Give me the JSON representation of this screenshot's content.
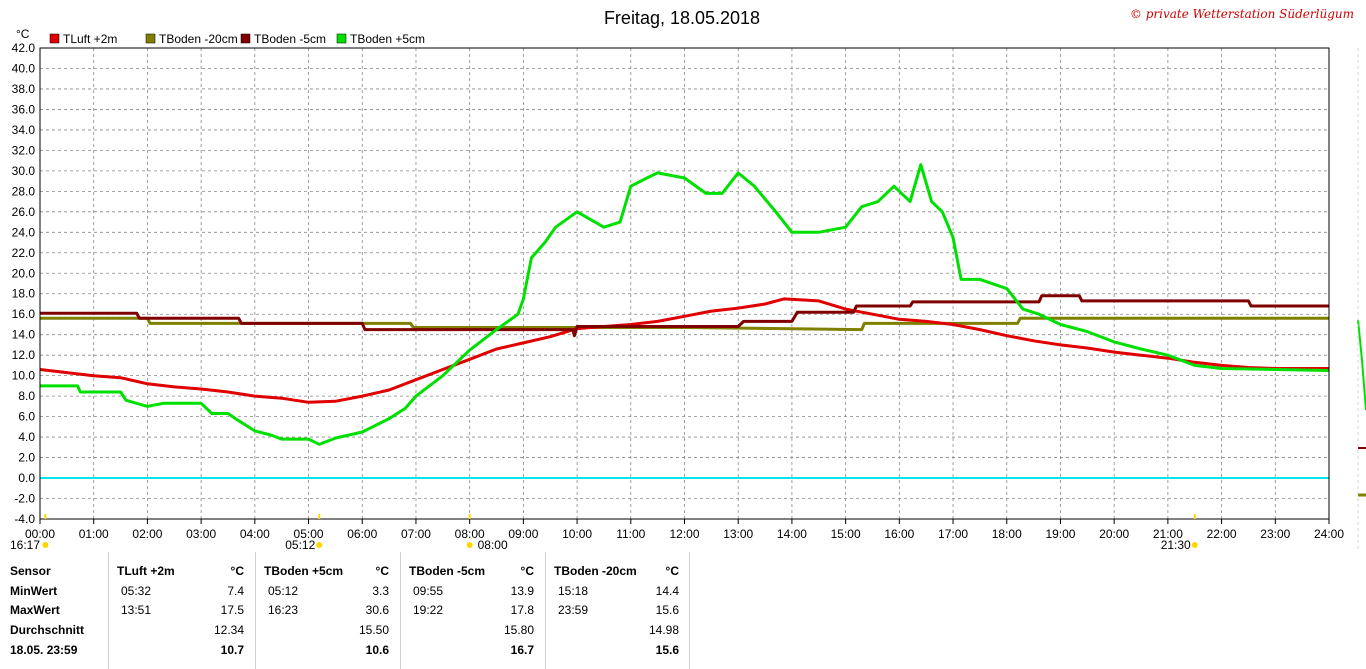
{
  "chart_data": {
    "type": "line",
    "title": "Freitag, 18.05.2018",
    "copyright": "© private Wetterstation Süderlügum",
    "ylabel": "°C",
    "ylim": [
      -4,
      42
    ],
    "ytick_step": 2,
    "xlim": [
      0,
      24
    ],
    "x_ticks": [
      "00:00",
      "01:00",
      "02:00",
      "03:00",
      "04:00",
      "05:00",
      "06:00",
      "07:00",
      "08:00",
      "09:00",
      "10:00",
      "11:00",
      "12:00",
      "13:00",
      "14:00",
      "15:00",
      "16:00",
      "17:00",
      "18:00",
      "19:00",
      "20:00",
      "21:00",
      "22:00",
      "23:00",
      "24:00"
    ],
    "sun_marks": [
      {
        "label": "16:17",
        "x": 0.1
      },
      {
        "label": "05:12",
        "x": 5.2
      },
      {
        "label": "08:00",
        "x": 8.0
      },
      {
        "label": "21:30",
        "x": 21.5
      }
    ],
    "grid": true,
    "legend_position": "top-left",
    "reference_line": {
      "y": 0,
      "color": "#00e5ee"
    },
    "series": [
      {
        "name": "TLuft +2m",
        "color": "#e00000",
        "points": [
          [
            0,
            10.6
          ],
          [
            1,
            10.0
          ],
          [
            1.5,
            9.8
          ],
          [
            2,
            9.2
          ],
          [
            2.5,
            8.9
          ],
          [
            3,
            8.7
          ],
          [
            3.5,
            8.4
          ],
          [
            4,
            8.0
          ],
          [
            4.5,
            7.8
          ],
          [
            5,
            7.4
          ],
          [
            5.5,
            7.5
          ],
          [
            6,
            8.0
          ],
          [
            6.5,
            8.6
          ],
          [
            7,
            9.6
          ],
          [
            7.5,
            10.6
          ],
          [
            8,
            11.6
          ],
          [
            8.5,
            12.6
          ],
          [
            9,
            13.2
          ],
          [
            9.5,
            13.8
          ],
          [
            10,
            14.6
          ],
          [
            10.5,
            14.8
          ],
          [
            11,
            15.0
          ],
          [
            11.5,
            15.3
          ],
          [
            12,
            15.8
          ],
          [
            12.5,
            16.3
          ],
          [
            13,
            16.6
          ],
          [
            13.5,
            17.0
          ],
          [
            13.85,
            17.5
          ],
          [
            14.5,
            17.3
          ],
          [
            15,
            16.5
          ],
          [
            15.5,
            16.0
          ],
          [
            16,
            15.5
          ],
          [
            16.5,
            15.3
          ],
          [
            17,
            15.0
          ],
          [
            17.5,
            14.5
          ],
          [
            18,
            13.9
          ],
          [
            18.5,
            13.4
          ],
          [
            19,
            13.0
          ],
          [
            19.5,
            12.7
          ],
          [
            20,
            12.3
          ],
          [
            20.5,
            12.0
          ],
          [
            21,
            11.7
          ],
          [
            21.5,
            11.3
          ],
          [
            22,
            11.0
          ],
          [
            22.5,
            10.8
          ],
          [
            23,
            10.7
          ],
          [
            23.99,
            10.7
          ]
        ]
      },
      {
        "name": "TBoden -20cm",
        "color": "#808000",
        "points": [
          [
            0,
            15.6
          ],
          [
            2,
            15.6
          ],
          [
            2.05,
            15.1
          ],
          [
            6.9,
            15.1
          ],
          [
            6.95,
            14.7
          ],
          [
            12,
            14.7
          ],
          [
            15.3,
            14.5
          ],
          [
            15.35,
            15.1
          ],
          [
            18.2,
            15.1
          ],
          [
            18.25,
            15.6
          ],
          [
            23.99,
            15.6
          ]
        ]
      },
      {
        "name": "TBoden -5cm",
        "color": "#800000",
        "points": [
          [
            0,
            16.1
          ],
          [
            1.8,
            16.1
          ],
          [
            1.85,
            15.6
          ],
          [
            3.7,
            15.6
          ],
          [
            3.75,
            15.1
          ],
          [
            6,
            15.1
          ],
          [
            6.05,
            14.5
          ],
          [
            9.92,
            14.5
          ],
          [
            9.95,
            13.9
          ],
          [
            10,
            14.8
          ],
          [
            11.5,
            14.8
          ],
          [
            11.55,
            14.8
          ],
          [
            13,
            14.8
          ],
          [
            13.1,
            15.3
          ],
          [
            14,
            15.3
          ],
          [
            14.1,
            16.2
          ],
          [
            15.15,
            16.2
          ],
          [
            15.2,
            16.8
          ],
          [
            16.2,
            16.8
          ],
          [
            16.25,
            17.2
          ],
          [
            18.6,
            17.2
          ],
          [
            18.65,
            17.8
          ],
          [
            19.35,
            17.8
          ],
          [
            19.4,
            17.3
          ],
          [
            22.5,
            17.3
          ],
          [
            22.55,
            16.8
          ],
          [
            23.99,
            16.8
          ]
        ]
      },
      {
        "name": "TBoden +5cm",
        "color": "#00e000",
        "points": [
          [
            0,
            9.0
          ],
          [
            0.7,
            9.0
          ],
          [
            0.75,
            8.4
          ],
          [
            1.5,
            8.4
          ],
          [
            1.6,
            7.6
          ],
          [
            2.0,
            7.0
          ],
          [
            2.3,
            7.3
          ],
          [
            3,
            7.3
          ],
          [
            3.2,
            6.3
          ],
          [
            3.5,
            6.3
          ],
          [
            3.7,
            5.6
          ],
          [
            4,
            4.6
          ],
          [
            4.3,
            4.2
          ],
          [
            4.5,
            3.8
          ],
          [
            5,
            3.8
          ],
          [
            5.2,
            3.3
          ],
          [
            5.5,
            3.9
          ],
          [
            6,
            4.5
          ],
          [
            6.5,
            5.8
          ],
          [
            6.8,
            6.8
          ],
          [
            7,
            8.0
          ],
          [
            7.5,
            10.0
          ],
          [
            8,
            12.5
          ],
          [
            8.5,
            14.5
          ],
          [
            8.9,
            16.0
          ],
          [
            9.0,
            17.5
          ],
          [
            9.15,
            21.5
          ],
          [
            9.4,
            23.0
          ],
          [
            9.6,
            24.5
          ],
          [
            10,
            26.0
          ],
          [
            10.5,
            24.5
          ],
          [
            10.8,
            25.0
          ],
          [
            11,
            28.5
          ],
          [
            11.3,
            29.3
          ],
          [
            11.5,
            29.8
          ],
          [
            12,
            29.3
          ],
          [
            12.4,
            27.8
          ],
          [
            12.7,
            27.8
          ],
          [
            13,
            29.8
          ],
          [
            13.3,
            28.5
          ],
          [
            13.7,
            26.0
          ],
          [
            14,
            24.0
          ],
          [
            14.5,
            24.0
          ],
          [
            15,
            24.5
          ],
          [
            15.3,
            26.5
          ],
          [
            15.6,
            27.0
          ],
          [
            15.9,
            28.5
          ],
          [
            16.2,
            27.0
          ],
          [
            16.4,
            30.6
          ],
          [
            16.6,
            27.0
          ],
          [
            16.8,
            26.0
          ],
          [
            17,
            23.5
          ],
          [
            17.15,
            19.4
          ],
          [
            17.5,
            19.4
          ],
          [
            18,
            18.5
          ],
          [
            18.3,
            16.5
          ],
          [
            18.6,
            16.0
          ],
          [
            19,
            15.0
          ],
          [
            19.5,
            14.3
          ],
          [
            20,
            13.3
          ],
          [
            20.5,
            12.6
          ],
          [
            21,
            12.0
          ],
          [
            21.5,
            11.0
          ],
          [
            22,
            10.7
          ],
          [
            23.99,
            10.5
          ]
        ]
      }
    ]
  },
  "stats": {
    "labels": {
      "sensor": "Sensor",
      "min": "MinWert",
      "max": "MaxWert",
      "avg": "Durchschnitt",
      "last": "18.05. 23:59"
    },
    "columns": [
      {
        "name": "TLuft +2m",
        "unit": "°C",
        "min_time": "05:32",
        "min_val": "7.4",
        "max_time": "13:51",
        "max_val": "17.5",
        "avg": "12.34",
        "last": "10.7"
      },
      {
        "name": "TBoden +5cm",
        "unit": "°C",
        "min_time": "05:12",
        "min_val": "3.3",
        "max_time": "16:23",
        "max_val": "30.6",
        "avg": "15.50",
        "last": "10.6"
      },
      {
        "name": "TBoden -5cm",
        "unit": "°C",
        "min_time": "09:55",
        "min_val": "13.9",
        "max_time": "19:22",
        "max_val": "17.8",
        "avg": "15.80",
        "last": "16.7"
      },
      {
        "name": "TBoden -20cm",
        "unit": "°C",
        "min_time": "15:18",
        "min_val": "14.4",
        "max_time": "23:59",
        "max_val": "15.6",
        "avg": "14.98",
        "last": "15.6"
      }
    ]
  }
}
